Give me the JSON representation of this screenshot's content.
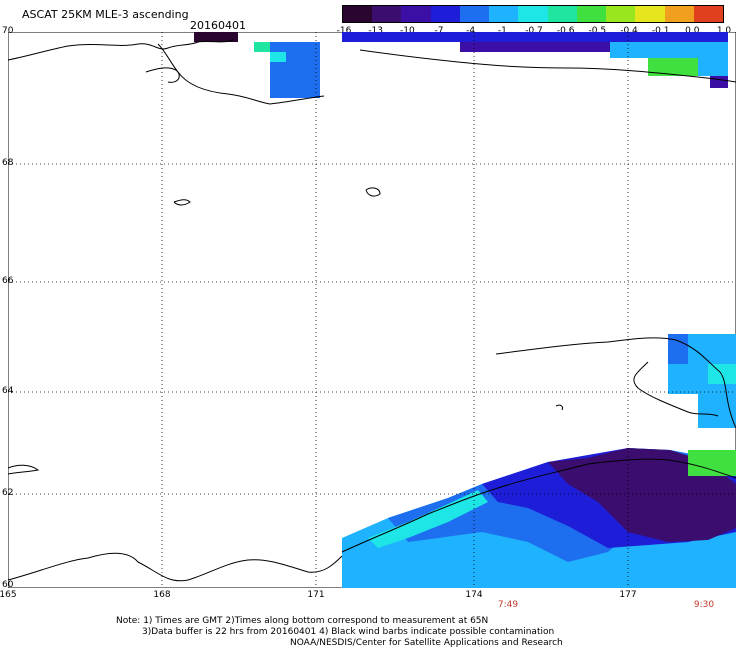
{
  "header": {
    "title": "ASCAT 25KM MLE-3 ascending",
    "date": "20160401"
  },
  "colorbar": {
    "labels": [
      "-16",
      "-13",
      "-10",
      "-7",
      "-4",
      "-1",
      "-0.7",
      "-0.6",
      "-0.5",
      "-0.4",
      "-0.1",
      "0.0",
      "1.0"
    ],
    "colors": [
      "#2a0530",
      "#3a0d6e",
      "#3b0fa5",
      "#1e1ed8",
      "#1e6ef0",
      "#1fb2ff",
      "#1ee6e6",
      "#1ee6a0",
      "#40e040",
      "#9ae61e",
      "#e6e61e",
      "#f0a01e",
      "#e0401e"
    ]
  },
  "map": {
    "lat_labels": [
      "70",
      "68",
      "66",
      "64",
      "62",
      "60"
    ],
    "lon_labels": [
      "165",
      "168",
      "171",
      "174",
      "177"
    ],
    "time_labels": [
      "7:49",
      "9:30"
    ]
  },
  "notes": {
    "line1": "Note: 1) Times are GMT 2)Times along bottom correspond to measurement at 65N",
    "line2": "3)Data buffer is 22 hrs from 20160401 4) Black wind barbs indicate possible contamination",
    "line3": "NOAA/NESDIS/Center for Satellite Applications and Research"
  }
}
